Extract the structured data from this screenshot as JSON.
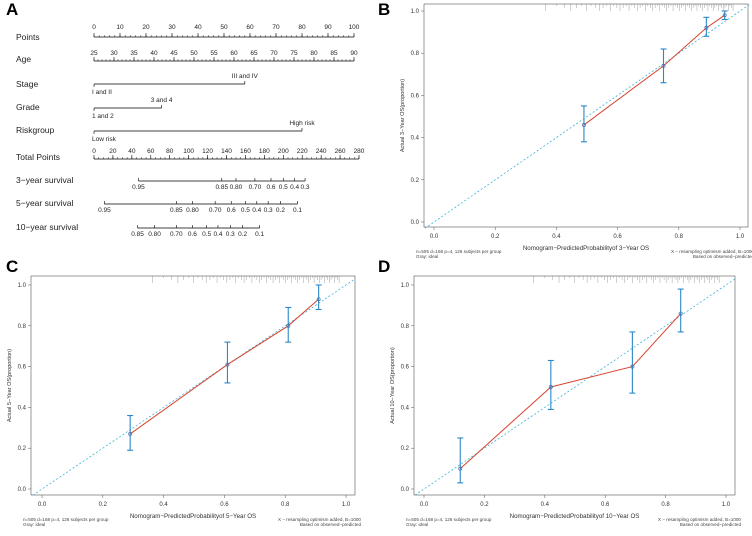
{
  "panels": {
    "A": "A",
    "B": "B",
    "C": "C",
    "D": "D"
  },
  "nomogram": {
    "scales": [
      {
        "key": "points",
        "label": "Points",
        "min": 0,
        "max": 100,
        "majors": [
          0,
          10,
          20,
          30,
          40,
          50,
          60,
          70,
          80,
          90,
          100
        ]
      },
      {
        "key": "age",
        "label": "Age",
        "min": 25,
        "max": 90,
        "majors": [
          25,
          30,
          35,
          40,
          45,
          50,
          55,
          60,
          65,
          70,
          75,
          80,
          85,
          90
        ]
      },
      {
        "key": "stage",
        "label": "Stage",
        "categories": [
          {
            "text": "I and II",
            "points": 0
          },
          {
            "text": "III and IV",
            "points": 58
          }
        ]
      },
      {
        "key": "grade",
        "label": "Grade",
        "categories": [
          {
            "text": "1 and 2",
            "points": 0
          },
          {
            "text": "3 and 4",
            "points": 26
          }
        ]
      },
      {
        "key": "risk",
        "label": "Riskgroup",
        "categories": [
          {
            "text": "Low risk",
            "points": 0
          },
          {
            "text": "High risk",
            "points": 80
          }
        ]
      },
      {
        "key": "total",
        "label": "Total Points",
        "min": 0,
        "max": 280,
        "majors": [
          0,
          20,
          40,
          60,
          80,
          100,
          120,
          140,
          160,
          180,
          200,
          220,
          240,
          260,
          280
        ]
      },
      {
        "key": "s3",
        "label": "3−year survival",
        "ticks": [
          {
            "text": "0.95",
            "total": 47
          },
          {
            "text": "0.85",
            "total": 135
          },
          {
            "text": "0.80",
            "total": 150
          },
          {
            "text": "0.70",
            "total": 170
          },
          {
            "text": "0.6",
            "total": 187
          },
          {
            "text": "0.5",
            "total": 200
          },
          {
            "text": "0.4",
            "total": 212
          },
          {
            "text": "0.3",
            "total": 223
          }
        ]
      },
      {
        "key": "s5",
        "label": "5−year survival",
        "ticks": [
          {
            "text": "0.95",
            "total": 11
          },
          {
            "text": "0.85",
            "total": 87
          },
          {
            "text": "0.80",
            "total": 104
          },
          {
            "text": "0.70",
            "total": 128
          },
          {
            "text": "0.6",
            "total": 145
          },
          {
            "text": "0.5",
            "total": 160
          },
          {
            "text": "0.4",
            "total": 172
          },
          {
            "text": "0.3",
            "total": 184
          },
          {
            "text": "0.2",
            "total": 197
          },
          {
            "text": "0.1",
            "total": 215
          }
        ]
      },
      {
        "key": "s10",
        "label": "10−year survival",
        "ticks": [
          {
            "text": "0.85",
            "total": 46
          },
          {
            "text": "0.80",
            "total": 64
          },
          {
            "text": "0.70",
            "total": 87
          },
          {
            "text": "0.6",
            "total": 104
          },
          {
            "text": "0.5",
            "total": 119
          },
          {
            "text": "0.4",
            "total": 131
          },
          {
            "text": "0.3",
            "total": 144
          },
          {
            "text": "0.2",
            "total": 157
          },
          {
            "text": "0.1",
            "total": 175
          }
        ]
      }
    ]
  },
  "chart_data": [
    {
      "type": "scatter",
      "panel": "B",
      "title": "",
      "xlabel": "Nomogram−PredictedProbabilityof 3−Year OS",
      "ylabel": "Actual 3−Year OS(proportion)",
      "xlim": [
        0,
        1
      ],
      "ylim": [
        0,
        1
      ],
      "xticks": [
        "0.0",
        "0.2",
        "0.4",
        "0.6",
        "0.8",
        "1.0"
      ],
      "yticks": [
        "0.0",
        "0.2",
        "0.4",
        "0.6",
        "0.8",
        "1.0"
      ],
      "series": [
        {
          "name": "calibration",
          "x": [
            0.49,
            0.75,
            0.89,
            0.95
          ],
          "y": [
            0.46,
            0.74,
            0.92,
            0.98
          ],
          "lower": [
            0.38,
            0.66,
            0.88,
            0.96
          ],
          "upper": [
            0.55,
            0.82,
            0.97,
            1.0
          ]
        }
      ],
      "note_left": [
        "n=505 d=168 p=4, 126 subjects per group",
        "Gray: ideal"
      ],
      "note_right": [
        "X − resampling optimism added, B=1000",
        "Based on observed−predicted"
      ]
    },
    {
      "type": "scatter",
      "panel": "C",
      "title": "",
      "xlabel": "Nomogram−PredictedProbabilityof 5−Year OS",
      "ylabel": "Actual 5−Year OS(proportion)",
      "xlim": [
        0,
        1
      ],
      "ylim": [
        0,
        1
      ],
      "xticks": [
        "0.0",
        "0.2",
        "0.4",
        "0.6",
        "0.8",
        "1.0"
      ],
      "yticks": [
        "0.0",
        "0.2",
        "0.4",
        "0.6",
        "0.8",
        "1.0"
      ],
      "series": [
        {
          "name": "calibration",
          "x": [
            0.29,
            0.61,
            0.81,
            0.91
          ],
          "y": [
            0.27,
            0.61,
            0.8,
            0.93
          ],
          "lower": [
            0.19,
            0.52,
            0.72,
            0.88
          ],
          "upper": [
            0.36,
            0.72,
            0.89,
            1.0
          ]
        }
      ],
      "note_left": [
        "n=505 d=168 p=4, 126 subjects per group",
        "Gray: ideal"
      ],
      "note_right": [
        "X − resampling optimism added, B=1000",
        "Based on observed−predicted"
      ]
    },
    {
      "type": "scatter",
      "panel": "D",
      "title": "",
      "xlabel": "Nomogram−PredictedProbabilityof 10−Year OS",
      "ylabel": "Actual 10−Year OS(proportion)",
      "xlim": [
        0,
        1
      ],
      "ylim": [
        0,
        1
      ],
      "xticks": [
        "0.0",
        "0.2",
        "0.4",
        "0.6",
        "0.8",
        "1.0"
      ],
      "yticks": [
        "0.0",
        "0.2",
        "0.4",
        "0.6",
        "0.8",
        "1.0"
      ],
      "series": [
        {
          "name": "calibration",
          "x": [
            0.12,
            0.42,
            0.69,
            0.85
          ],
          "y": [
            0.1,
            0.5,
            0.6,
            0.86
          ],
          "lower": [
            0.03,
            0.39,
            0.47,
            0.77
          ],
          "upper": [
            0.25,
            0.63,
            0.77,
            0.98
          ]
        }
      ],
      "note_left": [
        "n=505 d=168 p=4, 126 subjects per group",
        "Gray: ideal"
      ],
      "note_right": [
        "X − resampling optimism added, B=1000",
        "Based on observed−predicted"
      ]
    }
  ]
}
